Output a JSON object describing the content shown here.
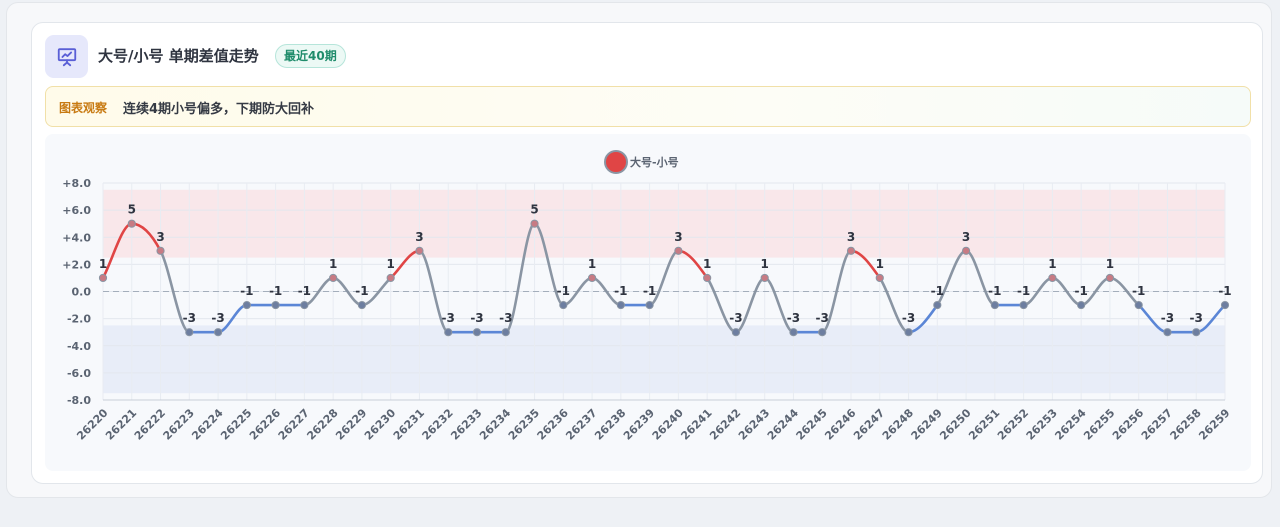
{
  "header": {
    "title": "大号/小号 单期差值走势",
    "badge": "最近40期",
    "icon": "presentation-chart-icon"
  },
  "observation": {
    "label": "图表观察",
    "text": "连续4期小号偏多，下期防大回补"
  },
  "colors": {
    "positive": "#e04545",
    "negative": "#5b86d6",
    "neutral": "#8a95a3",
    "band_high": "#f9e7ea",
    "band_low": "#e8edf8"
  },
  "chart_data": {
    "type": "line",
    "legend": {
      "label": "大号-小号",
      "placement": "top-center"
    },
    "x": [
      "26220",
      "26221",
      "26222",
      "26223",
      "26224",
      "26225",
      "26226",
      "26227",
      "26228",
      "26229",
      "26230",
      "26231",
      "26232",
      "26233",
      "26234",
      "26235",
      "26236",
      "26237",
      "26238",
      "26239",
      "26240",
      "26241",
      "26242",
      "26243",
      "26244",
      "26245",
      "26246",
      "26247",
      "26248",
      "26249",
      "26250",
      "26251",
      "26252",
      "26253",
      "26254",
      "26255",
      "26256",
      "26257",
      "26258",
      "26259"
    ],
    "series": [
      {
        "name": "大号-小号",
        "values": [
          1,
          5,
          3,
          -3,
          -3,
          -1,
          -1,
          -1,
          1,
          -1,
          1,
          3,
          -3,
          -3,
          -3,
          5,
          -1,
          1,
          -1,
          -1,
          3,
          1,
          -3,
          1,
          -3,
          -3,
          3,
          1,
          -3,
          -1,
          3,
          -1,
          -1,
          1,
          -1,
          1,
          -1,
          -3,
          -3,
          -1
        ]
      }
    ],
    "yticks": [
      "+8.0",
      "+6.0",
      "+4.0",
      "+2.0",
      "0.0",
      "-2.0",
      "-4.0",
      "-6.0",
      "-8.0"
    ],
    "ylim": [
      -8,
      8
    ],
    "bands": [
      {
        "from": 2.5,
        "to": 7.5,
        "color": "band_high"
      },
      {
        "from": -2.5,
        "to": -7.5,
        "color": "band_low"
      }
    ],
    "reference_line": 0,
    "grid": true,
    "data_labels": true
  }
}
